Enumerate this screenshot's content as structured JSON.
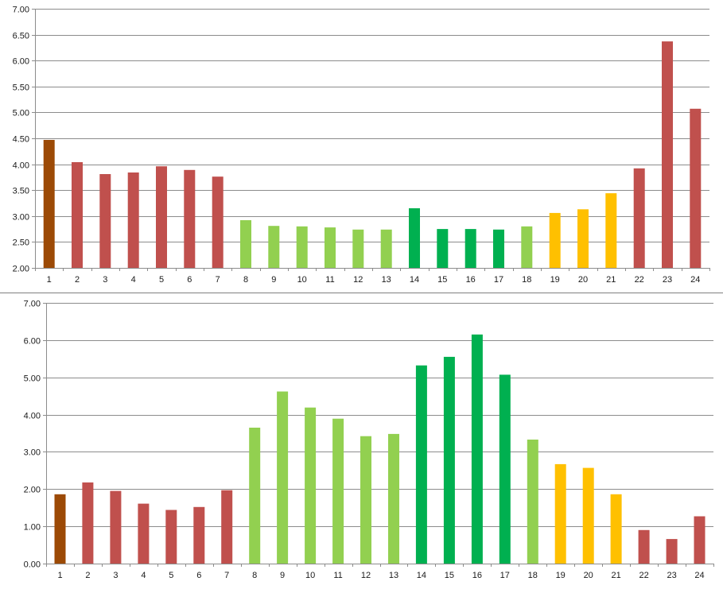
{
  "colors": {
    "brown": "#9C4A06",
    "red": "#C0504D",
    "lightgreen": "#92D050",
    "green": "#00B050",
    "yellow": "#FFC000"
  },
  "chart_data": [
    {
      "type": "bar",
      "categories": [
        "1",
        "2",
        "3",
        "4",
        "5",
        "6",
        "7",
        "8",
        "9",
        "10",
        "11",
        "12",
        "13",
        "14",
        "15",
        "16",
        "17",
        "18",
        "19",
        "20",
        "21",
        "22",
        "23",
        "24"
      ],
      "values": [
        4.47,
        4.04,
        3.81,
        3.84,
        3.96,
        3.89,
        3.76,
        2.92,
        2.81,
        2.8,
        2.78,
        2.74,
        2.74,
        3.15,
        2.75,
        2.75,
        2.74,
        2.8,
        3.06,
        3.13,
        3.44,
        3.92,
        6.37,
        5.07
      ],
      "bar_colors": [
        "brown",
        "red",
        "red",
        "red",
        "red",
        "red",
        "red",
        "lightgreen",
        "lightgreen",
        "lightgreen",
        "lightgreen",
        "lightgreen",
        "lightgreen",
        "green",
        "green",
        "green",
        "green",
        "lightgreen",
        "yellow",
        "yellow",
        "yellow",
        "red",
        "red",
        "red"
      ],
      "ylim": [
        2.0,
        7.0
      ],
      "yticks": [
        "2.00",
        "2.50",
        "3.00",
        "3.50",
        "4.00",
        "4.50",
        "5.00",
        "5.50",
        "6.00",
        "6.50",
        "7.00"
      ],
      "grid": true,
      "title": "",
      "xlabel": "",
      "ylabel": ""
    },
    {
      "type": "bar",
      "categories": [
        "1",
        "2",
        "3",
        "4",
        "5",
        "6",
        "7",
        "8",
        "9",
        "10",
        "11",
        "12",
        "13",
        "14",
        "15",
        "16",
        "17",
        "18",
        "19",
        "20",
        "21",
        "22",
        "23",
        "24"
      ],
      "values": [
        1.86,
        2.18,
        1.95,
        1.61,
        1.44,
        1.52,
        1.97,
        3.65,
        4.62,
        4.19,
        3.89,
        3.42,
        3.48,
        5.32,
        5.55,
        6.15,
        5.07,
        3.33,
        2.67,
        2.57,
        1.86,
        0.9,
        0.66,
        1.27
      ],
      "bar_colors": [
        "brown",
        "red",
        "red",
        "red",
        "red",
        "red",
        "red",
        "lightgreen",
        "lightgreen",
        "lightgreen",
        "lightgreen",
        "lightgreen",
        "lightgreen",
        "green",
        "green",
        "green",
        "green",
        "lightgreen",
        "yellow",
        "yellow",
        "yellow",
        "red",
        "red",
        "red"
      ],
      "ylim": [
        0.0,
        7.0
      ],
      "yticks": [
        "0.00",
        "1.00",
        "2.00",
        "3.00",
        "4.00",
        "5.00",
        "6.00",
        "7.00"
      ],
      "grid": true,
      "title": "",
      "xlabel": "",
      "ylabel": ""
    }
  ]
}
